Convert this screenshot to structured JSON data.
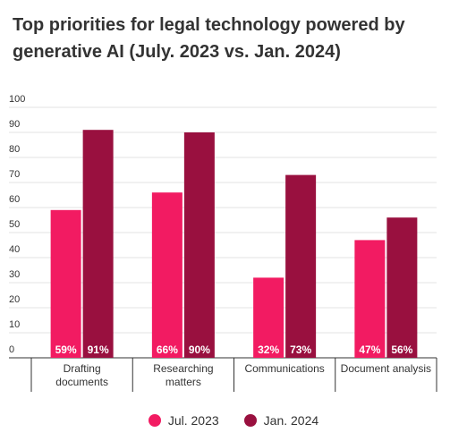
{
  "chart_data": {
    "type": "bar",
    "title_lines": [
      "Top priorities for legal technology powered by",
      "generative AI (July. 2023 vs. Jan. 2024)"
    ],
    "categories": [
      [
        "Drafting",
        "documents"
      ],
      [
        "Researching",
        "matters"
      ],
      [
        "Communications"
      ],
      [
        "Document analysis"
      ]
    ],
    "series": [
      {
        "name": "Jul. 2023",
        "color": "#f21b62",
        "values": [
          59,
          66,
          32,
          47
        ],
        "labels": [
          "59%",
          "66%",
          "32%",
          "47%"
        ]
      },
      {
        "name": "Jan. 2024",
        "color": "#99103f",
        "values": [
          91,
          90,
          73,
          56
        ],
        "labels": [
          "91%",
          "90%",
          "73%",
          "56%"
        ]
      }
    ],
    "ylim": [
      0,
      100
    ],
    "yticks": [
      "0",
      "10",
      "20",
      "30",
      "40",
      "50",
      "60",
      "70",
      "80",
      "90",
      "100"
    ],
    "grid": true,
    "legend_position": "bottom"
  }
}
